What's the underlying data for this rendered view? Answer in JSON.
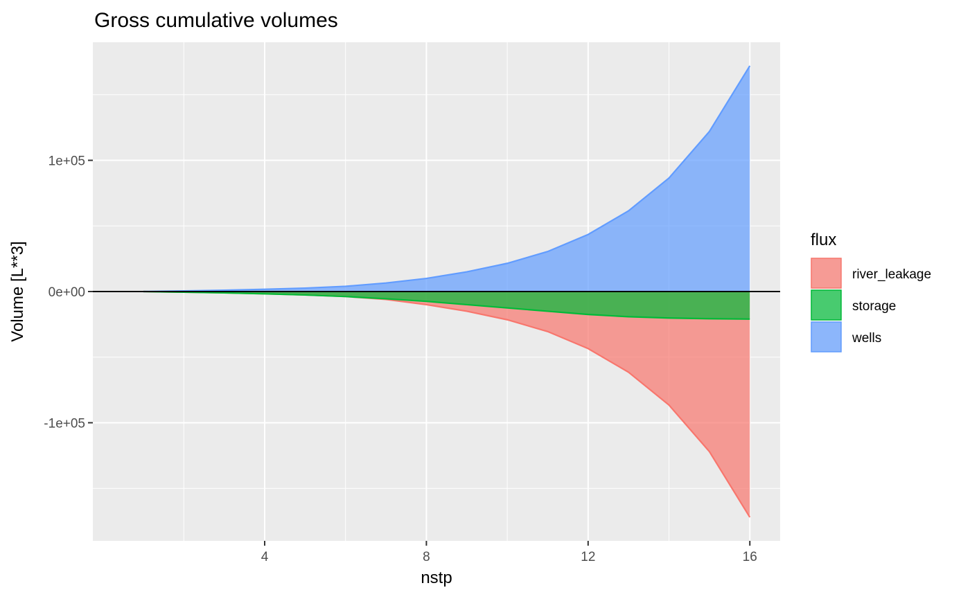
{
  "chart_data": {
    "type": "area",
    "title": "Gross cumulative volumes",
    "xlabel": "nstp",
    "ylabel": "Volume [L**3]",
    "x": [
      1,
      2,
      3,
      4,
      5,
      6,
      7,
      8,
      9,
      10,
      11,
      12,
      13,
      14,
      15,
      16
    ],
    "xlim": [
      -0.25,
      16.75
    ],
    "ylim": [
      -190000,
      190000
    ],
    "x_ticks": [
      4,
      8,
      12,
      16
    ],
    "x_tick_labels": [
      "4",
      "8",
      "12",
      "16"
    ],
    "y_ticks": [
      -100000,
      0,
      100000
    ],
    "y_tick_labels": [
      "-1e+05",
      "0e+00",
      "1e+05"
    ],
    "grid": true,
    "hline": 0,
    "legend": {
      "title": "flux",
      "placement": "right",
      "entries": [
        "river_leakage",
        "storage",
        "wells"
      ]
    },
    "series": [
      {
        "name": "river_leakage",
        "color": "#F8766D",
        "values": [
          0,
          -500,
          -1000,
          -1700,
          -2600,
          -3800,
          -6000,
          -10000,
          -15000,
          -21500,
          -30500,
          -43500,
          -61500,
          -86500,
          -122000,
          -172000
        ]
      },
      {
        "name": "storage",
        "color": "#00BA38",
        "values": [
          0,
          -500,
          -1000,
          -1700,
          -2600,
          -3800,
          -5500,
          -7500,
          -10000,
          -12500,
          -15000,
          -17500,
          -19200,
          -20200,
          -20700,
          -21000
        ]
      },
      {
        "name": "wells",
        "color": "#619CFF",
        "values": [
          0,
          500,
          1000,
          1700,
          2600,
          4000,
          6500,
          10000,
          15000,
          21500,
          30500,
          43500,
          61500,
          86500,
          122000,
          172000
        ]
      }
    ]
  }
}
